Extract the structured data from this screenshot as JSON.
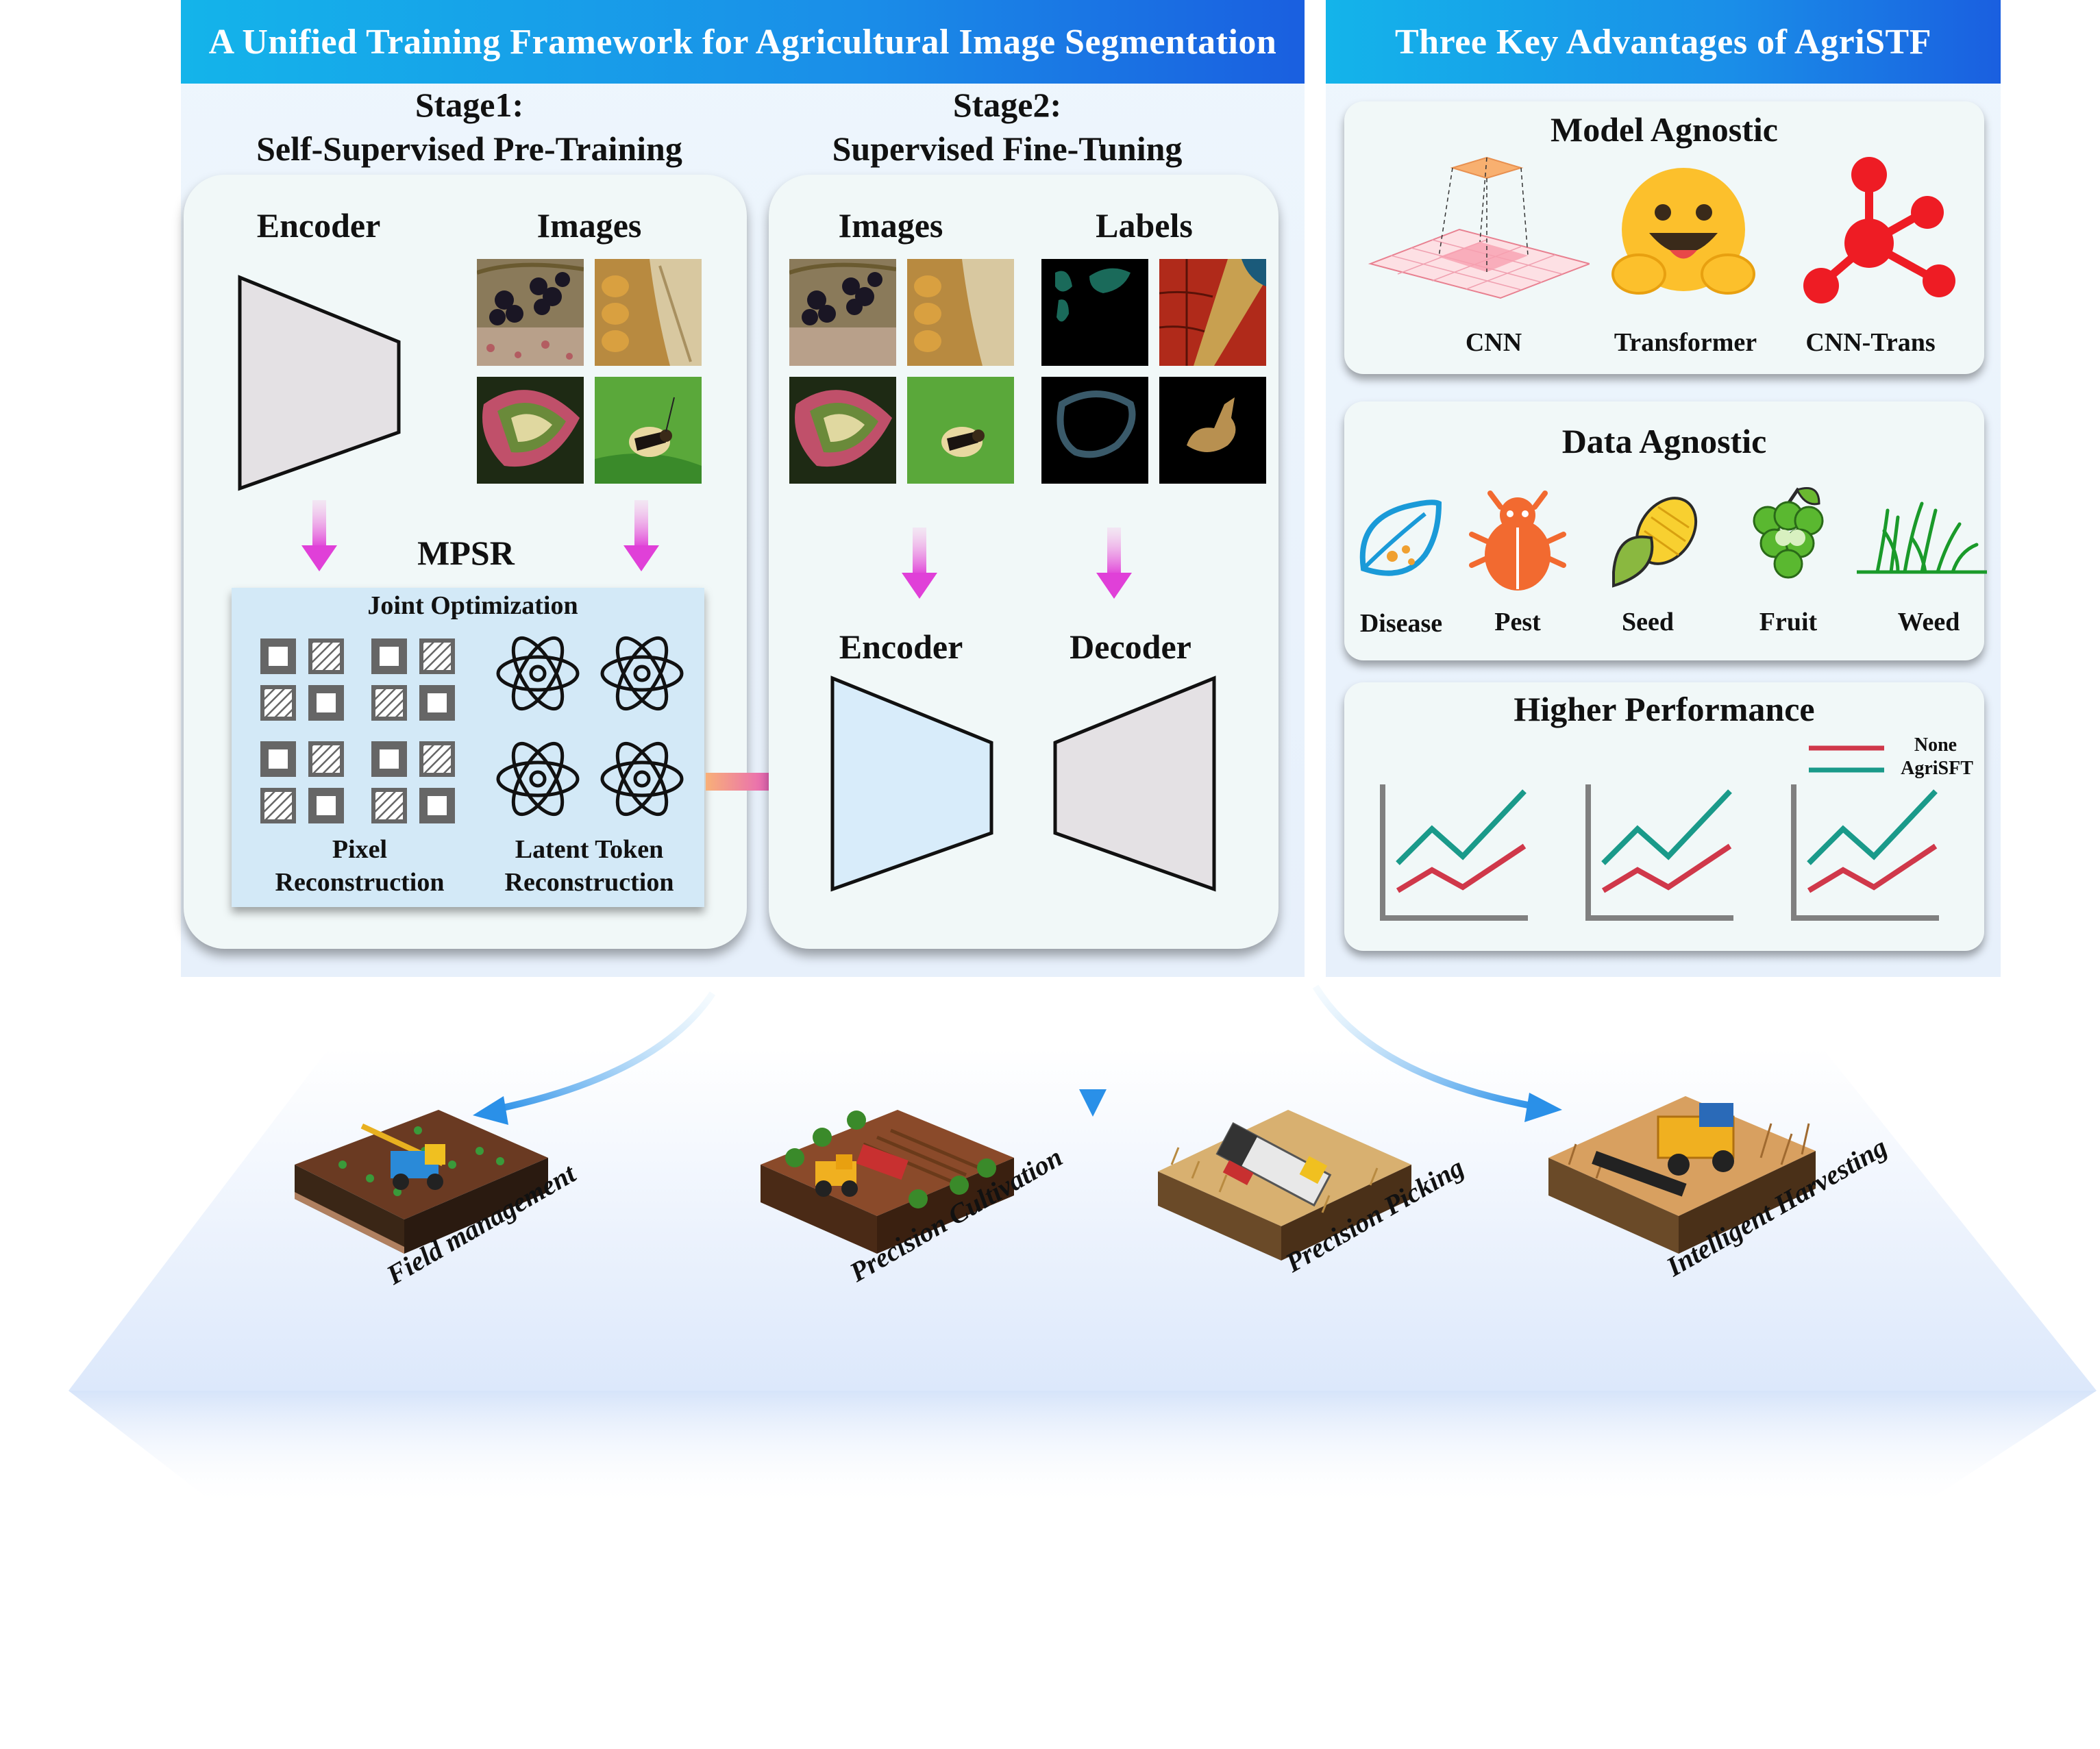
{
  "banner": {
    "left_title": "A Unified Training Framework for Agricultural Image Segmentation",
    "right_title": "Three Key Advantages of AgriSTF"
  },
  "stage1": {
    "line1": "Stage1:",
    "line2": "Self-Supervised Pre-Training",
    "encoder_label": "Encoder",
    "images_label": "Images",
    "mpsr_label": "MPSR",
    "joint_label": "Joint Optimization",
    "pixel_label_1": "Pixel",
    "pixel_label_2": "Reconstruction",
    "latent_label_1": "Latent Token",
    "latent_label_2": "Reconstruction"
  },
  "stage2": {
    "line1": "Stage2:",
    "line2": "Supervised Fine-Tuning",
    "images_label": "Images",
    "labels_label": "Labels",
    "encoder_label": "Encoder",
    "decoder_label": "Decoder"
  },
  "advantages": {
    "model": {
      "title": "Model Agnostic",
      "items": [
        "CNN",
        "Transformer",
        "CNN-Trans"
      ]
    },
    "data": {
      "title": "Data Agnostic",
      "items": [
        "Disease",
        "Pest",
        "Seed",
        "Fruit",
        "Weed"
      ]
    },
    "performance": {
      "title": "Higher Performance",
      "legend": [
        "None",
        "AgriSFT"
      ]
    }
  },
  "applications": [
    "Field management",
    "Precision Cultivation",
    "Precision Picking",
    "Intelligent Harvesting"
  ],
  "colors": {
    "banner_start": "#14b4ea",
    "banner_end": "#1a5fe0",
    "arrow_magenta": "#e040d8",
    "line_none": "#d0384a",
    "line_agrisft": "#1a9a8a",
    "axis_gray": "#808080"
  }
}
